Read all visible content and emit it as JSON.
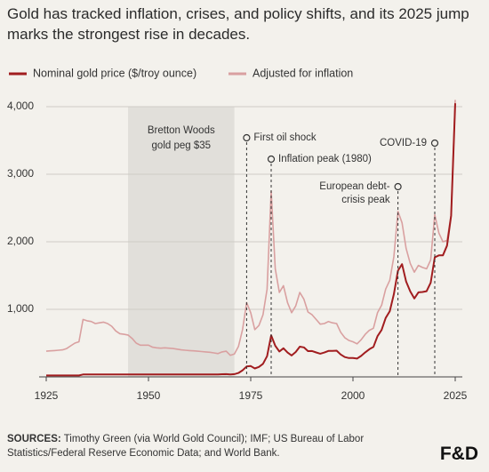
{
  "chart_data": {
    "type": "line",
    "title": "Gold has tracked inflation, crises, and policy shifts, and its 2025 jump marks the strongest rise in decades.",
    "x": [
      1925,
      1926,
      1927,
      1928,
      1929,
      1930,
      1931,
      1932,
      1933,
      1934,
      1935,
      1936,
      1937,
      1938,
      1939,
      1940,
      1941,
      1942,
      1943,
      1944,
      1945,
      1946,
      1947,
      1948,
      1949,
      1950,
      1951,
      1952,
      1953,
      1954,
      1955,
      1956,
      1957,
      1958,
      1959,
      1960,
      1961,
      1962,
      1963,
      1964,
      1965,
      1966,
      1967,
      1968,
      1969,
      1970,
      1971,
      1972,
      1973,
      1974,
      1975,
      1976,
      1977,
      1978,
      1979,
      1980,
      1981,
      1982,
      1983,
      1984,
      1985,
      1986,
      1987,
      1988,
      1989,
      1990,
      1991,
      1992,
      1993,
      1994,
      1995,
      1996,
      1997,
      1998,
      1999,
      2000,
      2001,
      2002,
      2003,
      2004,
      2005,
      2006,
      2007,
      2008,
      2009,
      2010,
      2011,
      2012,
      2013,
      2014,
      2015,
      2016,
      2017,
      2018,
      2019,
      2020,
      2021,
      2022,
      2023,
      2024,
      2025
    ],
    "series": [
      {
        "name": "Nominal gold price ($/troy ounce)",
        "color": "#a11d1f",
        "values": [
          20.67,
          20.67,
          20.67,
          20.67,
          20.67,
          20.67,
          20.67,
          20.67,
          20.67,
          35,
          35,
          35,
          35,
          35,
          35,
          35,
          35,
          35,
          35,
          35,
          35,
          35,
          35,
          35,
          35,
          35,
          35,
          35,
          35,
          35,
          35,
          35,
          35,
          35,
          35,
          35,
          35,
          35,
          35,
          35,
          35,
          35,
          35,
          39,
          41,
          36,
          41,
          58,
          97,
          154,
          161,
          125,
          148,
          193,
          306,
          615,
          460,
          376,
          424,
          361,
          317,
          368,
          447,
          437,
          381,
          383,
          362,
          344,
          360,
          384,
          384,
          388,
          331,
          294,
          279,
          279,
          271,
          310,
          363,
          409,
          444,
          603,
          695,
          872,
          972,
          1225,
          1572,
          1669,
          1411,
          1266,
          1160,
          1251,
          1257,
          1268,
          1393,
          1770,
          1799,
          1800,
          1943,
          2386,
          4050
        ]
      },
      {
        "name": "Adjusted for inflation",
        "color": "#d9a0a0",
        "values": [
          380,
          385,
          390,
          395,
          400,
          420,
          460,
          500,
          520,
          850,
          830,
          820,
          790,
          800,
          810,
          790,
          750,
          680,
          640,
          630,
          620,
          570,
          500,
          470,
          470,
          470,
          440,
          430,
          425,
          430,
          425,
          420,
          410,
          400,
          395,
          390,
          385,
          380,
          375,
          370,
          365,
          355,
          345,
          370,
          380,
          320,
          340,
          450,
          700,
          1100,
          950,
          700,
          760,
          920,
          1300,
          2750,
          1600,
          1250,
          1350,
          1100,
          950,
          1050,
          1250,
          1150,
          960,
          920,
          850,
          780,
          790,
          820,
          800,
          790,
          660,
          580,
          540,
          520,
          490,
          550,
          630,
          690,
          720,
          950,
          1060,
          1300,
          1430,
          1780,
          2450,
          2280,
          1900,
          1680,
          1550,
          1650,
          1620,
          1600,
          1730,
          2400,
          2130,
          2000,
          2020,
          2400,
          4100
        ]
      }
    ],
    "xlim": [
      1925,
      2025
    ],
    "xticks": [
      1925,
      1950,
      1975,
      2000,
      2025
    ],
    "ylim": [
      0,
      4000
    ],
    "yticks": [
      {
        "value": 1000,
        "label": "1,000"
      },
      {
        "value": 2000,
        "label": "2,000"
      },
      {
        "value": 3000,
        "label": "3,000"
      },
      {
        "value": 4000,
        "label": "4,000"
      }
    ],
    "grid": true,
    "shaded_regions": [
      {
        "label": [
          "Bretton Woods",
          "gold peg $35"
        ],
        "start": 1945,
        "end": 1971
      }
    ],
    "annotations": [
      {
        "label": [
          "First oil shock"
        ],
        "x": 1974
      },
      {
        "label": [
          "Inflation peak (1980)"
        ],
        "x": 1980
      },
      {
        "label": [
          "European debt-",
          "crisis peak"
        ],
        "x": 2011
      },
      {
        "label": [
          "COVID-19"
        ],
        "x": 2020
      }
    ],
    "sources_label": "SOURCES:",
    "sources": "Timothy Green (via World Gold Council); IMF; US Bureau of Labor Statistics/Federal Reserve Economic Data; and World Bank.",
    "logo": "F&D"
  }
}
